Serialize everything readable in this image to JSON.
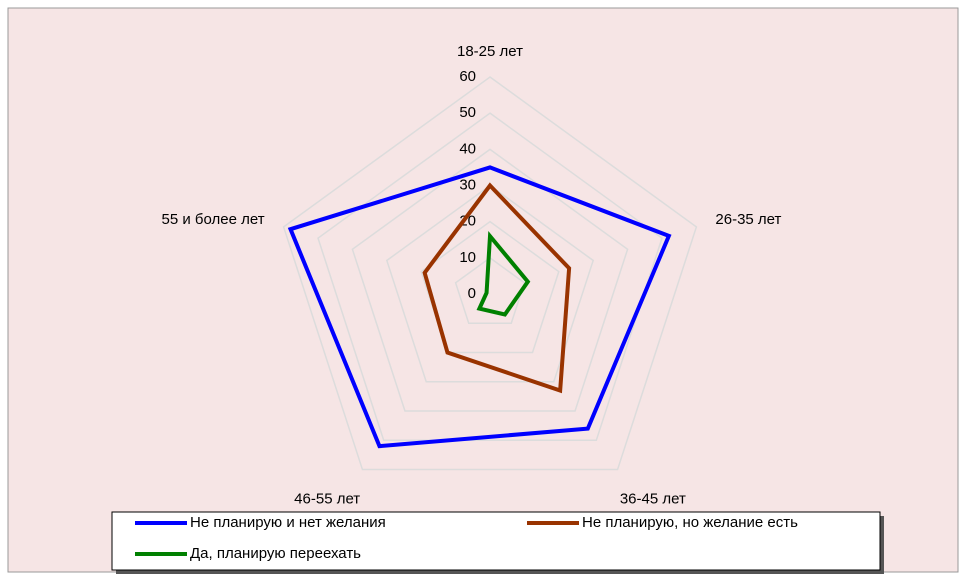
{
  "chart_data": {
    "type": "radar",
    "categories": [
      "18-25 лет",
      "26-35 лет",
      "36-45 лет",
      "46-55 лет",
      "55 и более лет"
    ],
    "series": [
      {
        "name": "Не планирую и нет желания",
        "color": "#0000ff",
        "values": [
          35,
          52,
          46,
          52,
          58
        ]
      },
      {
        "name": "Не планирую, но желание есть",
        "color": "#993300",
        "values": [
          30,
          23,
          33,
          20,
          19
        ]
      },
      {
        "name": "Да, планирую переехать",
        "color": "#008000",
        "values": [
          16,
          11,
          7,
          5,
          1
        ]
      }
    ],
    "ylim": [
      0,
      60
    ],
    "yticks": [
      0,
      10,
      20,
      30,
      40,
      50,
      60
    ],
    "grid": true
  }
}
